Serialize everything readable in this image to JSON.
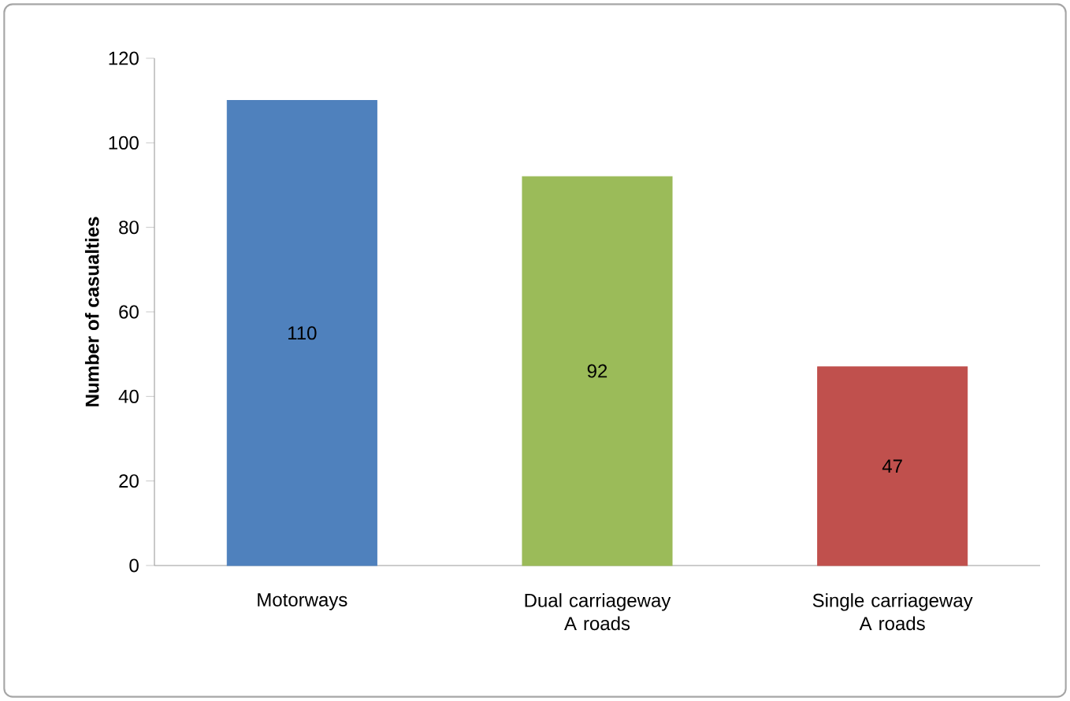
{
  "chart_data": {
    "type": "bar",
    "ylabel": "Number of casualties",
    "categories": [
      "Motorways",
      "Dual carriageway A roads",
      "Single carriageway A roads"
    ],
    "values": [
      110,
      92,
      47
    ],
    "colors": [
      "#4f81bd",
      "#9bbb59",
      "#c0504d"
    ],
    "ylim": [
      0,
      120
    ],
    "yticks": [
      0,
      20,
      40,
      60,
      80,
      100,
      120
    ],
    "data_labels": true,
    "grid": false,
    "legend": false
  }
}
